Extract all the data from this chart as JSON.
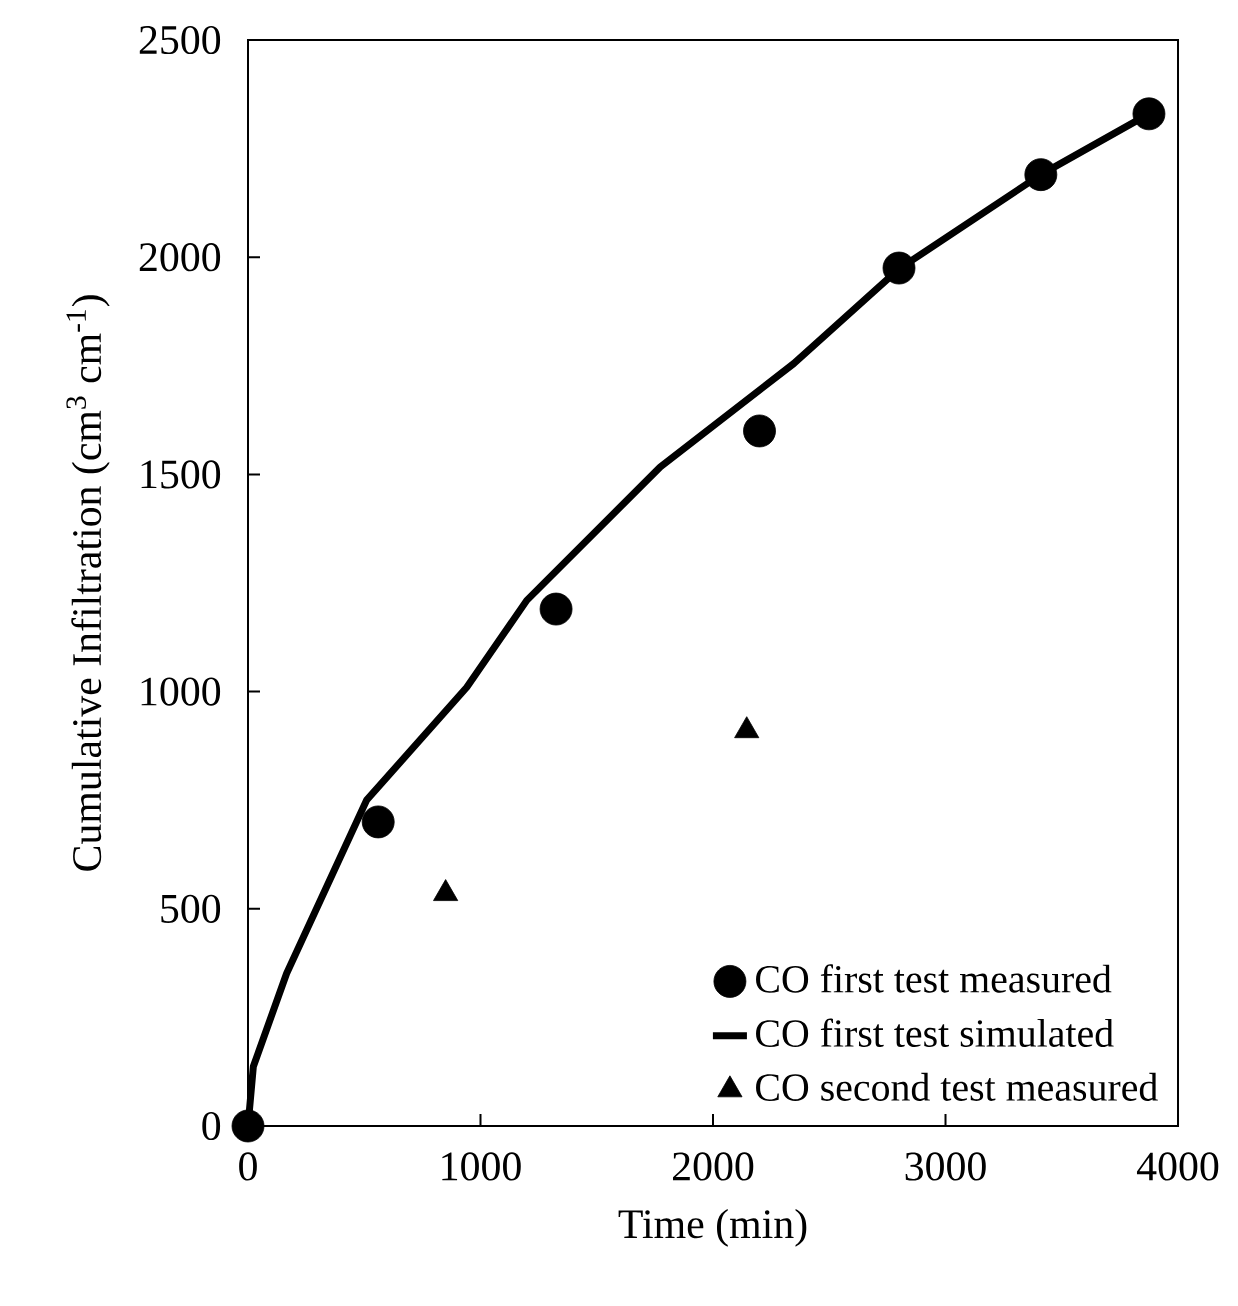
{
  "chart_data": {
    "type": "scatter",
    "xlabel": "Time (min)",
    "ylabel": "Cumulative Infiltration (cm$^{3}$ cm$^{-1}$)",
    "xlim": [
      0,
      4000
    ],
    "xticks": [
      0,
      1000,
      2000,
      3000,
      4000
    ],
    "ylim": [
      0,
      2500
    ],
    "yticks": [
      0,
      500,
      1000,
      1500,
      2000,
      2500
    ],
    "grid": false,
    "legend": "bottom right",
    "series": [
      {
        "name": "CO first test measured",
        "marker": "circle",
        "color": "#000000",
        "x": [
          0,
          560,
          1325,
          2200,
          2800,
          3410,
          3875
        ],
        "values": [
          0,
          700,
          1190,
          1600,
          1975,
          2190,
          2330
        ]
      },
      {
        "name": "CO first test simulated",
        "type": "line",
        "marker": "none",
        "line_style": "solid",
        "color": "#000000",
        "x": [
          0,
          23,
          166,
          510,
          941,
          1199,
          1773,
          2347,
          2800,
          3410,
          3875
        ],
        "values": [
          0,
          137,
          351,
          750,
          1010,
          1210,
          1517,
          1755,
          1973,
          2190,
          2330
        ]
      },
      {
        "name": "CO second test measured",
        "marker": "triangle",
        "color": "#000000",
        "x": [
          850,
          2145
        ],
        "values": [
          535,
          910
        ]
      }
    ]
  }
}
